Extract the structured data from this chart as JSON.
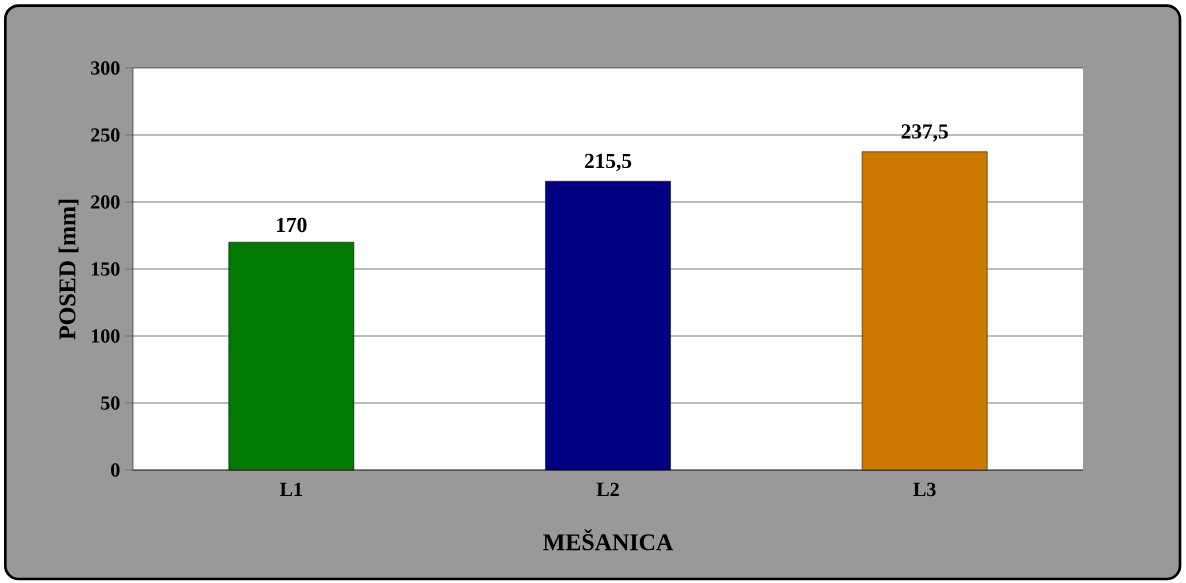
{
  "chart_data": {
    "type": "bar",
    "xlabel": "MEŠANICA",
    "ylabel": "POSED [mm]",
    "categories": [
      "L1",
      "L2",
      "L3"
    ],
    "values": [
      170,
      215.5,
      237.5
    ],
    "colors": [
      "#007a00",
      "#000080",
      "#cc7a00"
    ],
    "value_labels": [
      "170",
      "215,5",
      "237,5"
    ],
    "ylim": [
      0,
      300
    ],
    "yticks": [
      0,
      50,
      100,
      150,
      200,
      250,
      300
    ],
    "grid": "y"
  }
}
